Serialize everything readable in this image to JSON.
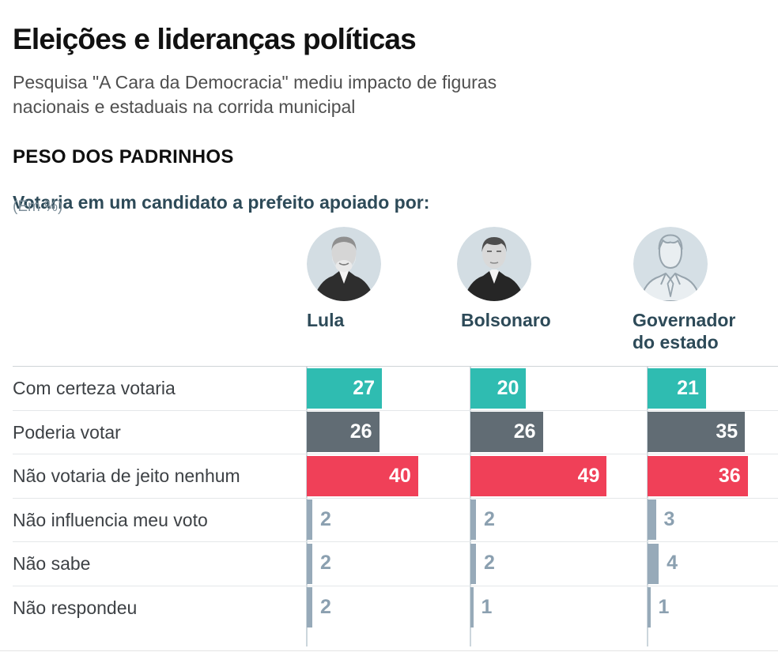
{
  "header": {
    "title": "Eleições e lideranças políticas",
    "subtitle": "Pesquisa \"A Cara da Democracia\" mediu impacto de figuras nacionais e estaduais na corrida municipal",
    "section_heading": "PESO DOS PADRINHOS",
    "question": "Votaria em um candidato a prefeito apoiado por:",
    "unit_note": "(Em %)"
  },
  "columns": [
    {
      "name": "Lula",
      "avatar_icon": "lula-portrait-icon"
    },
    {
      "name": "Bolsonaro",
      "avatar_icon": "bolsonaro-portrait-icon"
    },
    {
      "name": "Governador do estado",
      "avatar_icon": "generic-person-icon"
    }
  ],
  "chart_data": {
    "type": "bar",
    "orientation": "horizontal",
    "grouping": "grouped-by-leader",
    "unit": "%",
    "categories": [
      "Com certeza votaria",
      "Poderia votar",
      "Não votaria de jeito nenhum",
      "Não influencia meu voto",
      "Não sabe",
      "Não respondeu"
    ],
    "series": [
      {
        "name": "Lula",
        "values": [
          27,
          26,
          40,
          2,
          2,
          2
        ]
      },
      {
        "name": "Bolsonaro",
        "values": [
          20,
          26,
          49,
          2,
          2,
          1
        ]
      },
      {
        "name": "Governador do estado",
        "values": [
          21,
          35,
          36,
          3,
          4,
          1
        ]
      }
    ],
    "value_labels": "inside bar (white) for large values, outside (gray-blue) for small values",
    "axis": "no numeric axis shown; values labeled directly",
    "colors": {
      "row_colors": [
        "#2fbcb1",
        "#616c74",
        "#f04058",
        "#97aab9",
        "#97aab9",
        "#97aab9"
      ],
      "value_inside": "#ffffff",
      "value_outside": "#8ba0b0",
      "divider": "#e4e7e9",
      "baseline": "#ccd6dc",
      "heading_accent": "#2d4a58",
      "avatar_background": "#d5dfe5"
    }
  }
}
